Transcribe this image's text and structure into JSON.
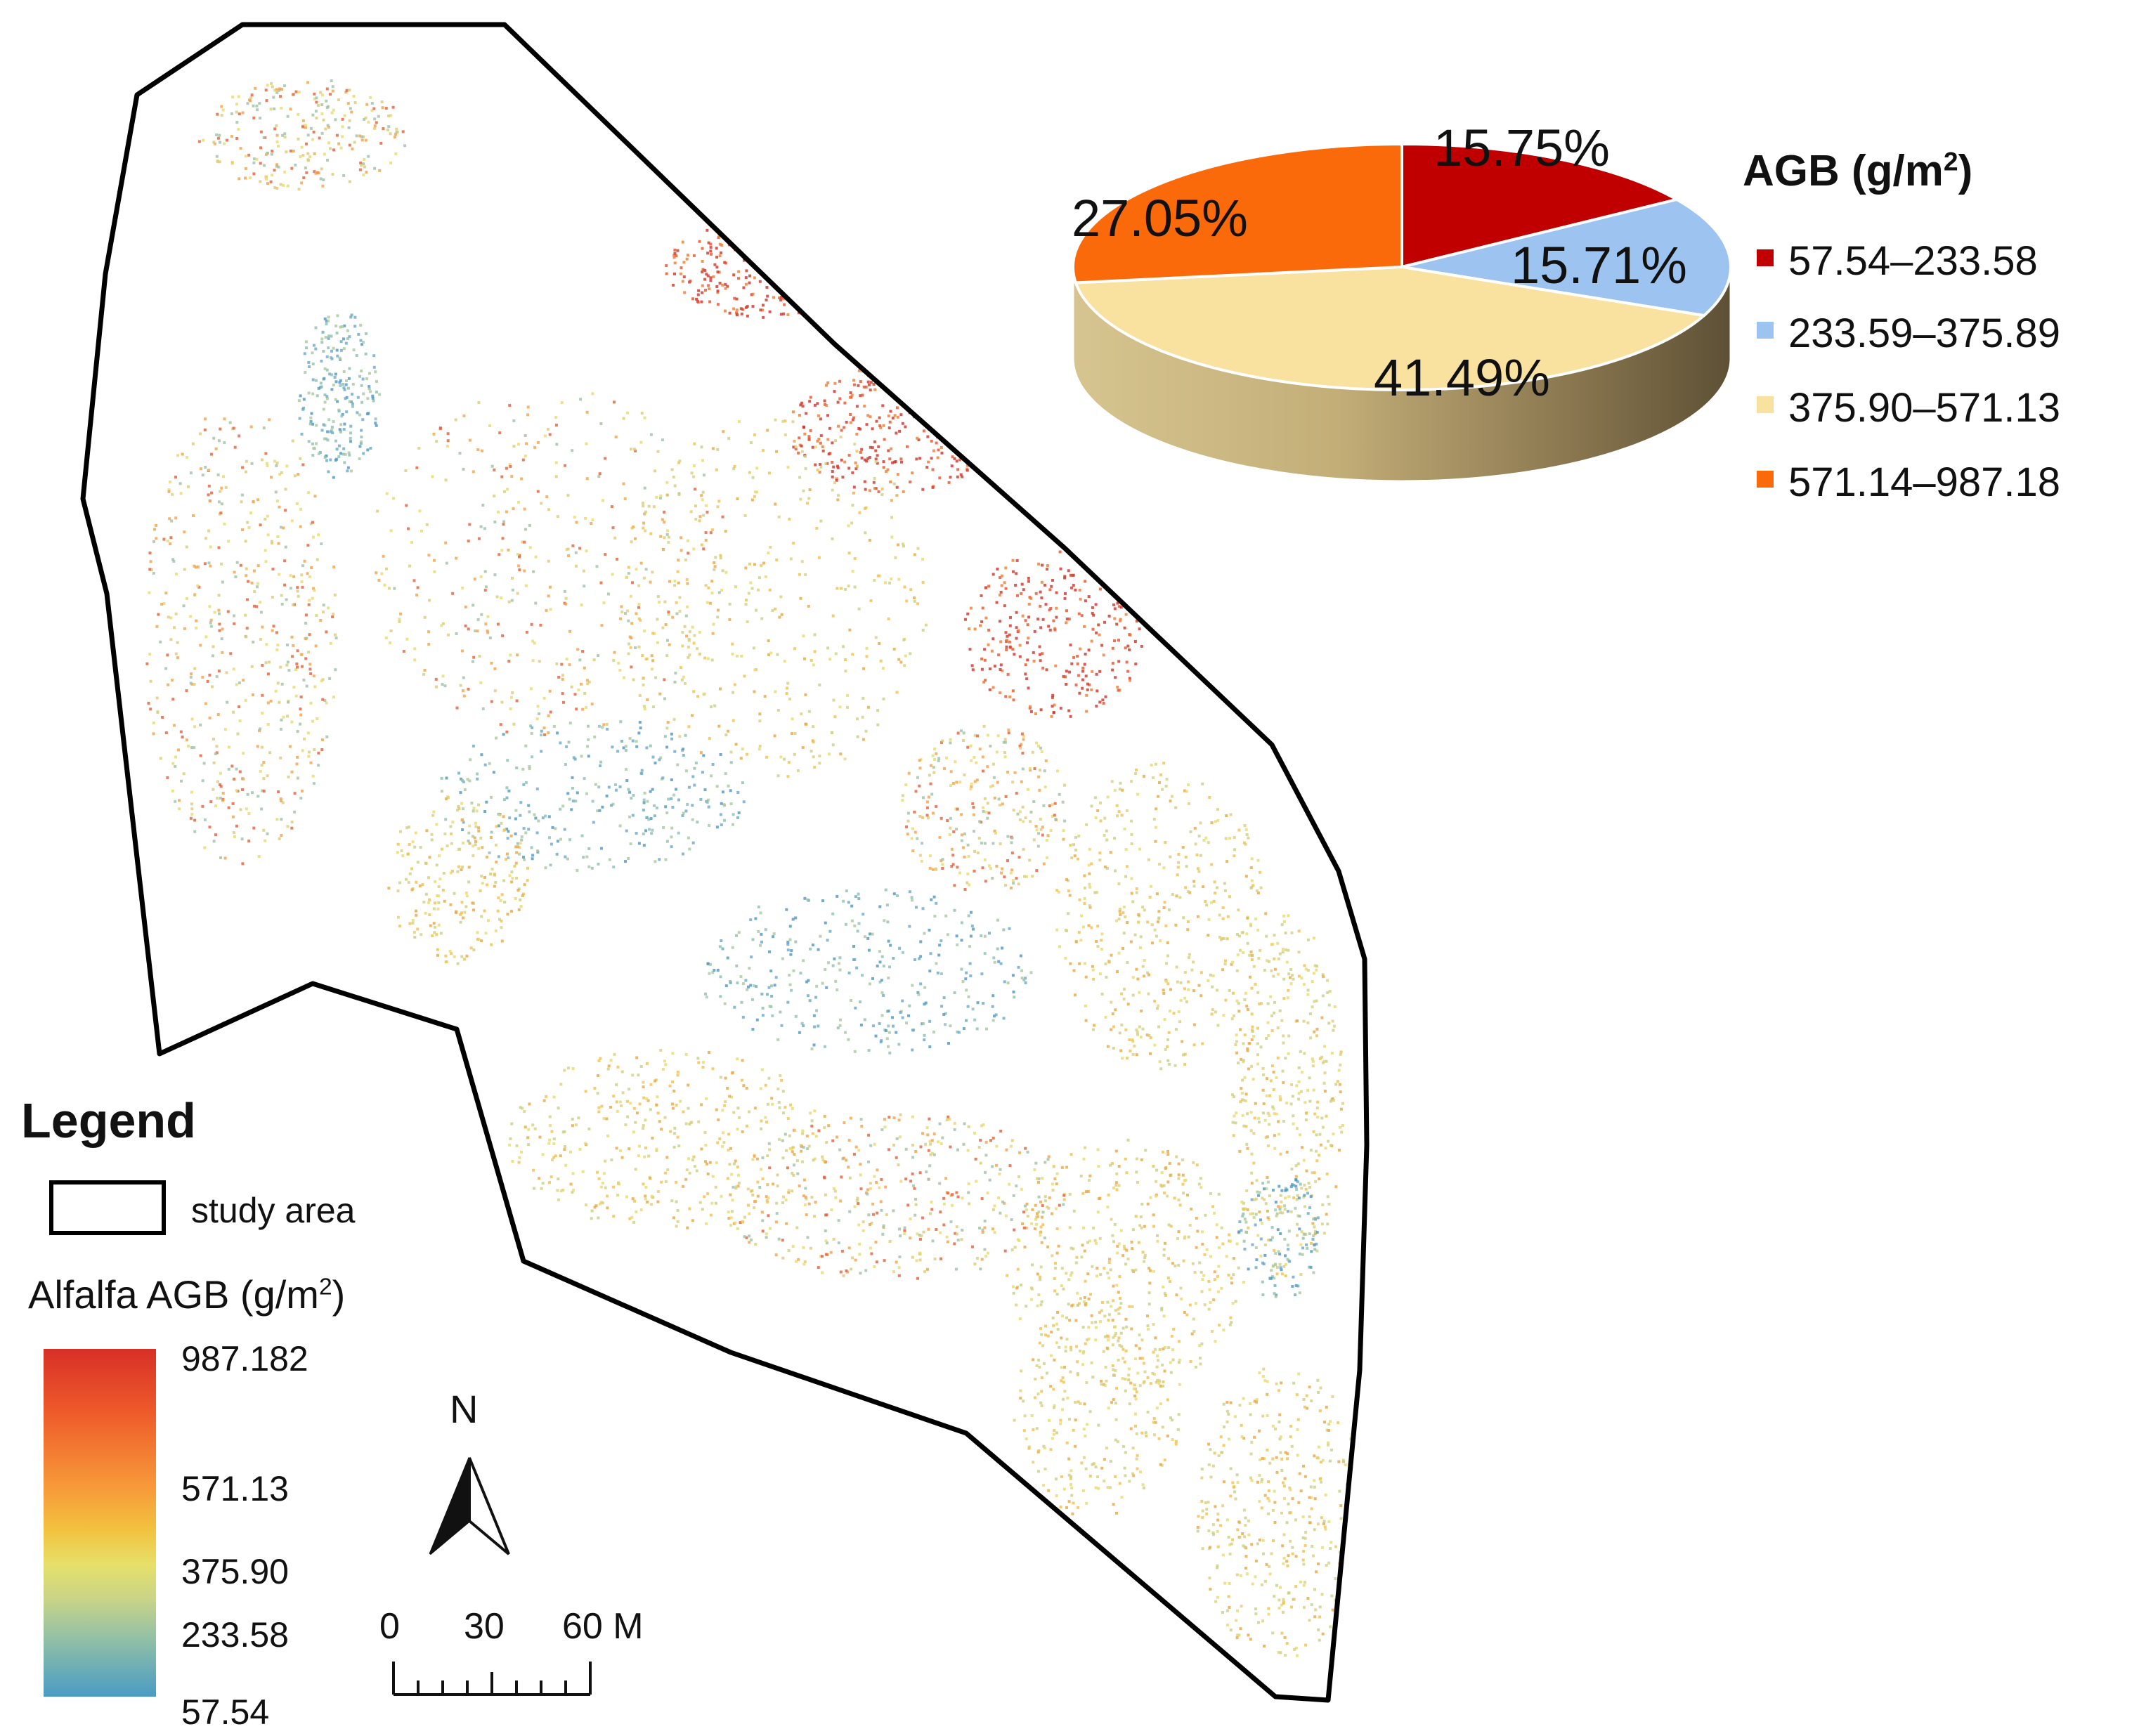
{
  "legend": {
    "title": "Legend",
    "study_area_label": "study area",
    "ramp_title_base": "Alfalfa AGB (g/m",
    "ramp_title_sup": "2",
    "ramp_title_end": ")",
    "ramp_ticks": [
      "987.182",
      "571.13",
      "375.90",
      "233.58",
      "57.54"
    ],
    "ramp_colors": {
      "high": "#d73027",
      "mid_high": "#f79a3a",
      "mid": "#e7e06a",
      "mid_low": "#8fbfa7",
      "low": "#4a9bc4"
    }
  },
  "north_arrow": {
    "label": "N"
  },
  "scale_bar": {
    "labels": [
      "0",
      "30",
      "60 M"
    ]
  },
  "chart_data": {
    "type": "pie",
    "title_base": "AGB (g/m",
    "title_sup": "2",
    "title_end": ")",
    "slices": [
      {
        "label": "57.54–233.58",
        "value": 15.75,
        "text": "15.75%",
        "color": "#c00000"
      },
      {
        "label": "233.59–375.89",
        "value": 15.71,
        "text": "15.71%",
        "color": "#9dc3f0"
      },
      {
        "label": "375.90–571.13",
        "value": 41.49,
        "text": "41.49%",
        "color": "#f9e1a0"
      },
      {
        "label": "571.14–987.18",
        "value": 27.05,
        "text": "27.05%",
        "color": "#fa6a0a"
      }
    ],
    "legend_placement": "right",
    "style": "3d"
  }
}
